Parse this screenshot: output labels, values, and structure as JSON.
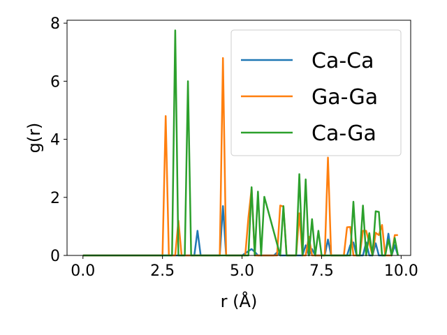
{
  "chart_data": {
    "type": "line",
    "xlabel": "r (Å)",
    "ylabel": "g(r)",
    "xlim": [
      -0.5,
      10.3
    ],
    "ylim": [
      0,
      8.1
    ],
    "xticks": [
      0.0,
      2.5,
      5.0,
      7.5,
      10.0
    ],
    "xtick_labels": [
      "0.0",
      "2.5",
      "5.0",
      "7.5",
      "10.0"
    ],
    "yticks": [
      0,
      2,
      4,
      6,
      8
    ],
    "ytick_labels": [
      "0",
      "2",
      "4",
      "6",
      "8"
    ],
    "grid": false,
    "legend_position": "top-right",
    "series": [
      {
        "name": "Ca-Ca",
        "color": "#1f77b4",
        "x": [
          0,
          3.5,
          3.6,
          3.7,
          4.3,
          4.4,
          4.5,
          5.0,
          5.3,
          5.4,
          5.5,
          6.0,
          6.1,
          6.2,
          6.9,
          7.0,
          7.1,
          7.2,
          7.3,
          7.6,
          7.7,
          7.8,
          8.3,
          8.4,
          8.5,
          8.6,
          8.8,
          8.9,
          9.0,
          9.1,
          9.2,
          9.3,
          9.5,
          9.6,
          9.7,
          9.8,
          9.9
        ],
        "y": [
          0,
          0,
          0.85,
          0,
          0,
          1.7,
          0,
          0,
          0.22,
          0.12,
          0,
          0,
          0.1,
          0,
          0,
          0.35,
          0,
          0.22,
          0,
          0,
          0.55,
          0,
          0,
          0.35,
          0.45,
          0,
          0,
          0.45,
          0,
          0,
          0.42,
          0,
          0,
          0.75,
          0,
          0.35,
          0
        ]
      },
      {
        "name": "Ga-Ga",
        "color": "#ff7f0e",
        "x": [
          0,
          2.5,
          2.6,
          2.7,
          2.9,
          3.0,
          3.1,
          4.3,
          4.4,
          4.5,
          5.1,
          5.2,
          5.3,
          5.4,
          6.1,
          6.2,
          6.3,
          6.4,
          6.7,
          6.8,
          6.9,
          7.0,
          7.1,
          7.2,
          7.6,
          7.7,
          7.8,
          8.2,
          8.3,
          8.4,
          8.5,
          8.7,
          8.8,
          8.9,
          9.1,
          9.2,
          9.3,
          9.4,
          9.5,
          9.7,
          9.8,
          9.9
        ],
        "y": [
          0,
          0,
          4.8,
          0,
          0,
          1.2,
          0,
          0,
          6.8,
          0,
          0,
          1.3,
          2.3,
          0,
          0,
          1.72,
          1.68,
          0,
          0,
          1.45,
          0,
          0,
          0.65,
          0,
          0,
          3.37,
          0,
          0,
          0.97,
          0.98,
          0,
          0,
          0.85,
          0.85,
          0,
          0.78,
          0.7,
          1.05,
          0,
          0,
          0.7,
          0.7
        ]
      },
      {
        "name": "Ca-Ga",
        "color": "#2ca02c",
        "x": [
          0,
          2.8,
          2.9,
          3.0,
          3.2,
          3.3,
          3.4,
          5.2,
          5.3,
          5.4,
          5.5,
          5.6,
          5.7,
          6.2,
          6.3,
          6.4,
          6.7,
          6.8,
          6.9,
          7.0,
          7.1,
          7.2,
          7.3,
          7.4,
          7.5,
          8.4,
          8.5,
          8.6,
          8.7,
          8.8,
          8.9,
          9.0,
          9.1,
          9.2,
          9.3,
          9.4,
          9.5,
          9.6,
          9.7,
          9.8,
          9.9
        ],
        "y": [
          0,
          0,
          7.75,
          0,
          0,
          6.0,
          0,
          0,
          2.35,
          0,
          2.2,
          0,
          2.02,
          0,
          1.7,
          0,
          0,
          2.8,
          0,
          2.62,
          0,
          1.25,
          0,
          0.85,
          0,
          0,
          1.85,
          0,
          0,
          1.72,
          0,
          0.77,
          0,
          1.52,
          1.5,
          0,
          0,
          0.55,
          0,
          0.6,
          0
        ]
      }
    ]
  }
}
